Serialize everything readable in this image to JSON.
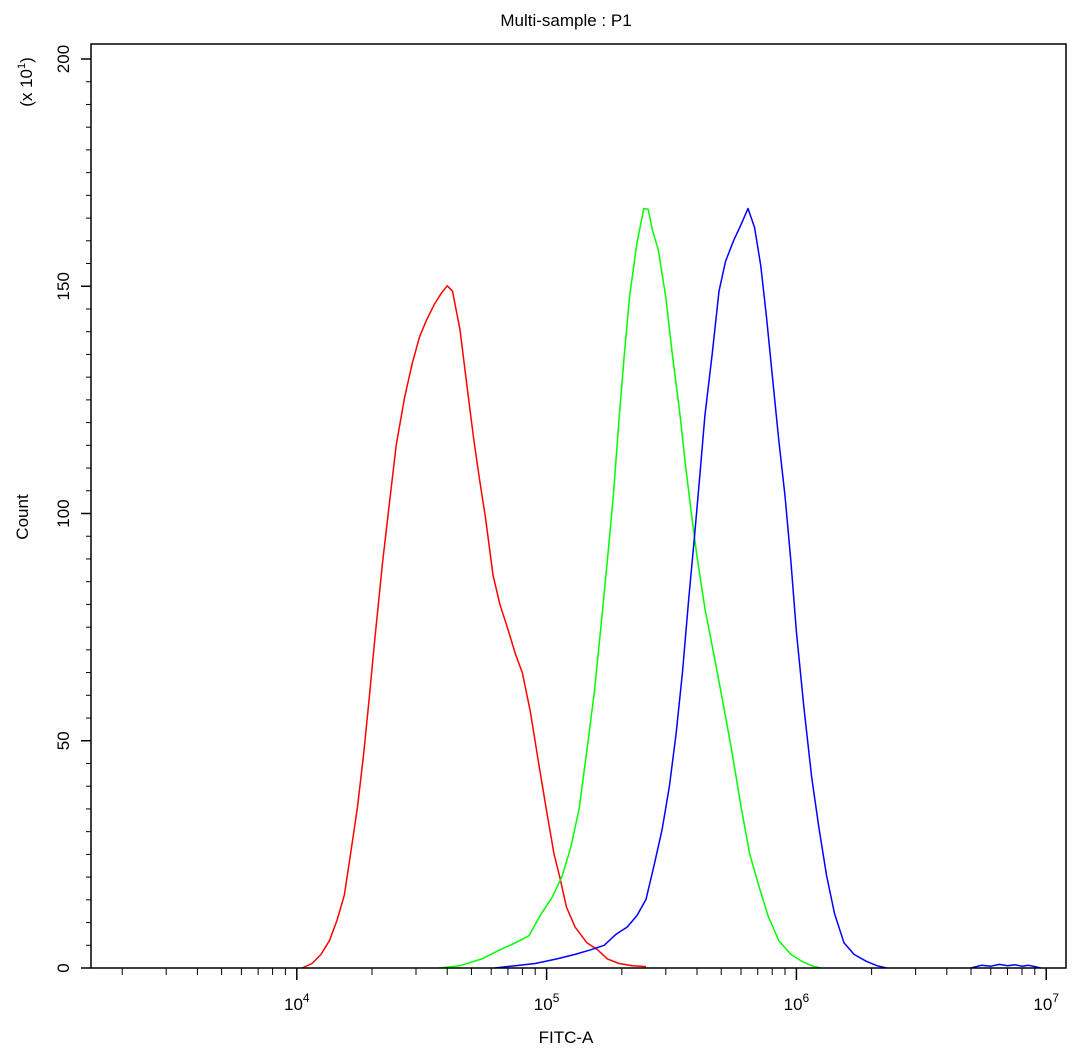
{
  "chart_data": {
    "type": "line",
    "title": "Multi-sample : P1",
    "xlabel": "FITC-A",
    "ylabel": "Count",
    "y_multiplier": "(x 10",
    "y_multiplier_exp": "1",
    "y_multiplier_close": ")",
    "x_scale": "log",
    "xlim": [
      1500,
      12000000
    ],
    "ylim": [
      0,
      200
    ],
    "grid": false,
    "legend": "none",
    "x_ticks": [
      {
        "base": "10",
        "exp": "4",
        "value": 10000
      },
      {
        "base": "10",
        "exp": "5",
        "value": 100000
      },
      {
        "base": "10",
        "exp": "6",
        "value": 1000000
      },
      {
        "base": "10",
        "exp": "7",
        "value": 10000000
      }
    ],
    "y_ticks": [
      {
        "label": "0",
        "value": 0
      },
      {
        "label": "50",
        "value": 50
      },
      {
        "label": "100",
        "value": 100
      },
      {
        "label": "150",
        "value": 150
      },
      {
        "label": "200",
        "value": 200
      }
    ],
    "series": [
      {
        "color": "#ff0000",
        "points": [
          [
            10500,
            0
          ],
          [
            11500,
            1
          ],
          [
            12500,
            3
          ],
          [
            13500,
            6
          ],
          [
            14500,
            11
          ],
          [
            15500,
            17
          ],
          [
            16500,
            25
          ],
          [
            17500,
            35
          ],
          [
            18500,
            47
          ],
          [
            19500,
            60
          ],
          [
            20500,
            73
          ],
          [
            22000,
            88
          ],
          [
            23500,
            102
          ],
          [
            25000,
            115
          ],
          [
            27000,
            126
          ],
          [
            29000,
            134
          ],
          [
            31000,
            138
          ],
          [
            33000,
            142
          ],
          [
            35500,
            146
          ],
          [
            38000,
            149
          ],
          [
            40000,
            151
          ],
          [
            42000,
            148
          ],
          [
            45000,
            140
          ],
          [
            48000,
            128
          ],
          [
            51000,
            117
          ],
          [
            54000,
            108
          ],
          [
            57000,
            98
          ],
          [
            61000,
            86
          ],
          [
            65000,
            80
          ],
          [
            70000,
            75
          ],
          [
            75000,
            70
          ],
          [
            80000,
            64
          ],
          [
            86000,
            56
          ],
          [
            93000,
            45
          ],
          [
            100000,
            35
          ],
          [
            107000,
            26
          ],
          [
            113000,
            19
          ],
          [
            120000,
            13
          ],
          [
            130000,
            9
          ],
          [
            145000,
            6
          ],
          [
            160000,
            4
          ],
          [
            175000,
            2
          ],
          [
            195000,
            1
          ],
          [
            220000,
            0.5
          ],
          [
            250000,
            0.3
          ]
        ]
      },
      {
        "color": "#00ff00",
        "points": [
          [
            37000,
            0
          ],
          [
            45000,
            0.5
          ],
          [
            55000,
            2
          ],
          [
            65000,
            4
          ],
          [
            75000,
            6
          ],
          [
            85000,
            8
          ],
          [
            95000,
            11
          ],
          [
            105000,
            15
          ],
          [
            115000,
            20
          ],
          [
            125000,
            27
          ],
          [
            135000,
            36
          ],
          [
            145000,
            47
          ],
          [
            155000,
            60
          ],
          [
            165000,
            75
          ],
          [
            175000,
            90
          ],
          [
            185000,
            105
          ],
          [
            195000,
            120
          ],
          [
            205000,
            135
          ],
          [
            215000,
            148
          ],
          [
            230000,
            160
          ],
          [
            245000,
            168
          ],
          [
            255000,
            166
          ],
          [
            265000,
            162
          ],
          [
            280000,
            158
          ],
          [
            300000,
            148
          ],
          [
            320000,
            135
          ],
          [
            340000,
            122
          ],
          [
            360000,
            110
          ],
          [
            380000,
            100
          ],
          [
            400000,
            91
          ],
          [
            430000,
            80
          ],
          [
            460000,
            70
          ],
          [
            500000,
            60
          ],
          [
            550000,
            48
          ],
          [
            600000,
            36
          ],
          [
            650000,
            26
          ],
          [
            700000,
            18
          ],
          [
            770000,
            11
          ],
          [
            850000,
            6
          ],
          [
            950000,
            3
          ],
          [
            1050000,
            1.5
          ],
          [
            1150000,
            0.5
          ],
          [
            1250000,
            0
          ]
        ]
      },
      {
        "color": "#0000ff",
        "points": [
          [
            62000,
            0
          ],
          [
            75000,
            0.5
          ],
          [
            90000,
            1
          ],
          [
            110000,
            2
          ],
          [
            130000,
            3
          ],
          [
            150000,
            4
          ],
          [
            170000,
            5
          ],
          [
            190000,
            7
          ],
          [
            210000,
            9
          ],
          [
            230000,
            12
          ],
          [
            250000,
            16
          ],
          [
            270000,
            22
          ],
          [
            290000,
            30
          ],
          [
            310000,
            40
          ],
          [
            330000,
            52
          ],
          [
            350000,
            66
          ],
          [
            370000,
            80
          ],
          [
            390000,
            94
          ],
          [
            410000,
            108
          ],
          [
            430000,
            122
          ],
          [
            460000,
            136
          ],
          [
            490000,
            148
          ],
          [
            520000,
            155
          ],
          [
            560000,
            160
          ],
          [
            600000,
            164
          ],
          [
            640000,
            168
          ],
          [
            680000,
            162
          ],
          [
            720000,
            154
          ],
          [
            760000,
            143
          ],
          [
            800000,
            131
          ],
          [
            850000,
            117
          ],
          [
            900000,
            103
          ],
          [
            950000,
            89
          ],
          [
            1000000,
            74
          ],
          [
            1070000,
            58
          ],
          [
            1150000,
            43
          ],
          [
            1230000,
            30
          ],
          [
            1320000,
            20
          ],
          [
            1420000,
            12
          ],
          [
            1550000,
            6
          ],
          [
            1700000,
            3
          ],
          [
            1900000,
            1.5
          ],
          [
            2100000,
            0.5
          ],
          [
            2300000,
            0
          ]
        ]
      },
      {
        "color": "#0000ff",
        "points": [
          [
            5000000,
            0
          ],
          [
            5500000,
            0.6
          ],
          [
            6000000,
            0.4
          ],
          [
            6500000,
            0.8
          ],
          [
            7000000,
            0.5
          ],
          [
            7500000,
            0.7
          ],
          [
            8000000,
            0.4
          ],
          [
            8500000,
            0.6
          ],
          [
            9000000,
            0.3
          ],
          [
            9500000,
            0
          ]
        ]
      }
    ]
  }
}
